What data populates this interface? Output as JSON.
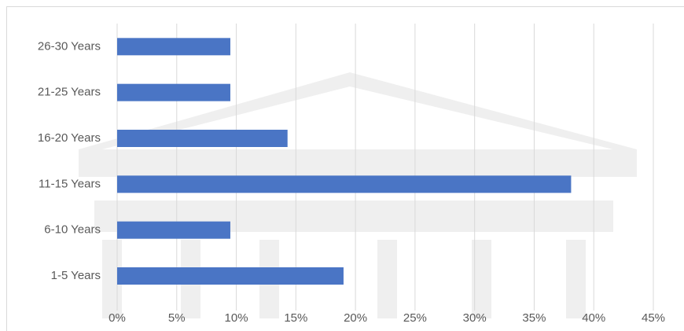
{
  "chart_data": {
    "type": "hbar",
    "categories": [
      "1-5 Years",
      "6-10 Years",
      "11-15 Years",
      "16-20 Years",
      "21-25 Years",
      "26-30 Years"
    ],
    "values": [
      19.0,
      9.5,
      38.1,
      14.3,
      9.5,
      9.5
    ],
    "color": "#4a75c5",
    "xlim": [
      0,
      45
    ],
    "xticks": [
      {
        "value": 0,
        "label": "0%"
      },
      {
        "value": 5,
        "label": "5%"
      },
      {
        "value": 10,
        "label": "10%"
      },
      {
        "value": 15,
        "label": "15%"
      },
      {
        "value": 20,
        "label": "20%"
      },
      {
        "value": 25,
        "label": "25%"
      },
      {
        "value": 30,
        "label": "30%"
      },
      {
        "value": 35,
        "label": "35%"
      },
      {
        "value": 40,
        "label": "40%"
      },
      {
        "value": 45,
        "label": "45%"
      }
    ],
    "grid": true
  }
}
